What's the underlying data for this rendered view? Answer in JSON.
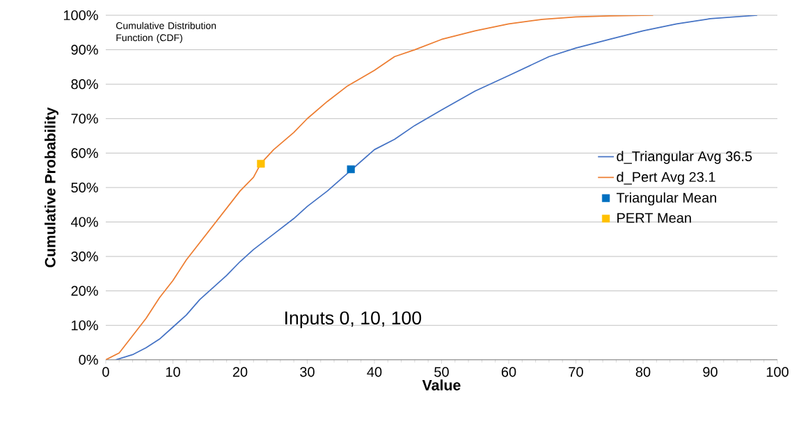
{
  "chart_data": {
    "type": "line",
    "xlabel": "Value",
    "ylabel": "Cumulative Probability",
    "annotations": [
      "Cumulative Distribution Function (CDF)",
      "Inputs 0, 10, 100"
    ],
    "xlim": [
      0,
      100
    ],
    "xticks": [
      0,
      10,
      20,
      30,
      40,
      50,
      60,
      70,
      80,
      90,
      100
    ],
    "ylim": [
      0,
      100
    ],
    "yticks": [
      {
        "value": 0,
        "label": "0%"
      },
      {
        "value": 10,
        "label": "10%"
      },
      {
        "value": 20,
        "label": "20%"
      },
      {
        "value": 30,
        "label": "30%"
      },
      {
        "value": 40,
        "label": "40%"
      },
      {
        "value": 50,
        "label": "50%"
      },
      {
        "value": 60,
        "label": "60%"
      },
      {
        "value": 70,
        "label": "70%"
      },
      {
        "value": 80,
        "label": "80%"
      },
      {
        "value": 90,
        "label": "90%"
      },
      {
        "value": 100,
        "label": "100%"
      }
    ],
    "grid": "y",
    "legend": "right",
    "series": [
      {
        "name": "d_Triangular Avg 36.5",
        "color": "#4472c4",
        "marker": "none",
        "x": [
          1.5,
          4,
          6,
          8,
          10,
          12,
          14,
          16,
          18,
          20,
          22,
          25,
          28,
          30,
          33,
          36.5,
          40,
          43,
          46,
          50,
          55,
          60,
          66,
          70,
          75,
          80,
          85,
          90,
          97
        ],
        "values": [
          0,
          1.5,
          3.5,
          6,
          9.5,
          13,
          17.5,
          21,
          24.5,
          28.5,
          32,
          36.5,
          41,
          44.5,
          49,
          55,
          61,
          64,
          68,
          72.5,
          78,
          82.5,
          88,
          90.5,
          93,
          95.5,
          97.5,
          99,
          100
        ]
      },
      {
        "name": "d_Pert Avg 23.1",
        "color": "#ed7d31",
        "marker": "none",
        "x": [
          0,
          2,
          4,
          6,
          8,
          10,
          12,
          14,
          16,
          18,
          20,
          22,
          23.1,
          25,
          28,
          30,
          33,
          36,
          40,
          43,
          46,
          50,
          55,
          60,
          65,
          70,
          75,
          81.5
        ],
        "values": [
          0,
          2,
          7,
          12,
          18,
          23,
          29,
          34,
          39,
          44,
          49,
          53,
          57,
          61,
          66,
          70,
          75,
          79.5,
          84,
          88,
          90,
          93,
          95.5,
          97.5,
          98.8,
          99.5,
          99.8,
          100
        ]
      },
      {
        "name": "Triangular Mean",
        "color": "#0070c0",
        "type": "scatter",
        "marker": "square",
        "x": [
          36.5
        ],
        "values": [
          55.3
        ]
      },
      {
        "name": "PERT Mean",
        "color": "#ffc000",
        "type": "scatter",
        "marker": "square",
        "x": [
          23.1
        ],
        "values": [
          56.9
        ]
      }
    ]
  }
}
